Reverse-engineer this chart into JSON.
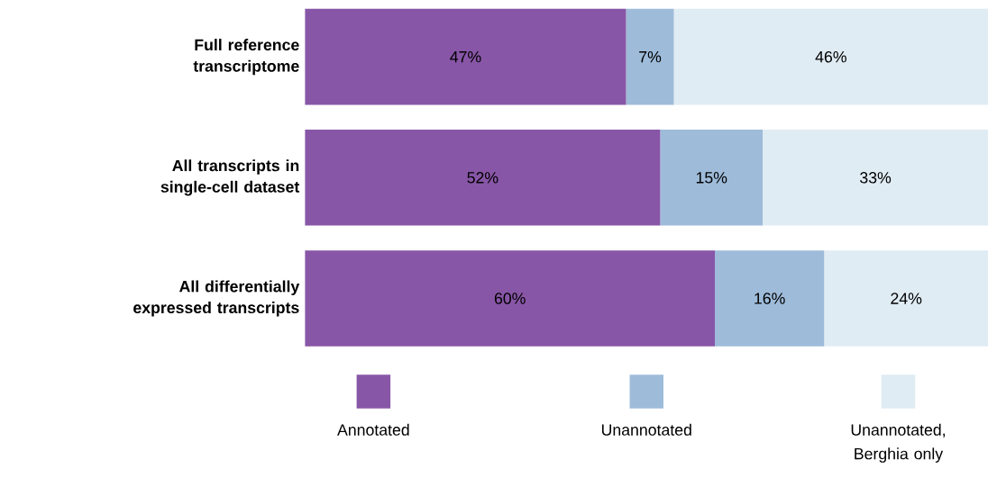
{
  "chart_data": {
    "type": "bar",
    "orientation": "horizontal",
    "stacked": true,
    "legend": "bottom",
    "categories": [
      "Full reference transcriptome",
      "All transcripts in single-cell dataset",
      "All differentially expressed transcripts"
    ],
    "series": [
      {
        "name": "Annotated",
        "color": "#8856a7",
        "values": [
          47,
          52,
          60
        ],
        "value_labels": [
          "47%",
          "52%",
          "60%"
        ]
      },
      {
        "name": "Unannotated",
        "color": "#9ebcda",
        "values": [
          7,
          15,
          16
        ],
        "value_labels": [
          "7%",
          "15%",
          "16%"
        ]
      },
      {
        "name": "Unannotated, Berghia only",
        "color": "#e0ecf4",
        "values": [
          46,
          33,
          24
        ],
        "value_labels": [
          "46%",
          "33%",
          "24%"
        ]
      }
    ]
  }
}
